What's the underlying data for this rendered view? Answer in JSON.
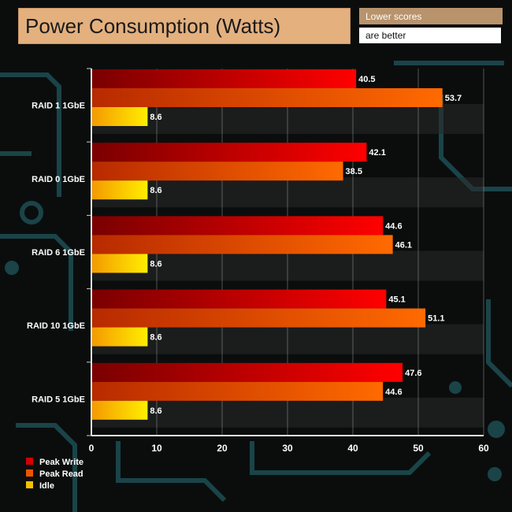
{
  "header": {
    "title": "Power Consumption (Watts)",
    "note_line1": "Lower scores",
    "note_line2": "are better"
  },
  "colors": {
    "peak_write": "#d40000",
    "peak_read": "#ee5500",
    "idle": "#f5c000",
    "grid": "#d8d8d8",
    "text": "#ffffff"
  },
  "chart_data": {
    "type": "bar",
    "orientation": "horizontal",
    "title": "Power Consumption (Watts)",
    "xlabel": "",
    "ylabel": "",
    "xlim": [
      0,
      60
    ],
    "xticks": [
      0,
      10,
      20,
      30,
      40,
      50,
      60
    ],
    "grid": true,
    "legend_position": "bottom-left",
    "categories": [
      "RAID 1 1GbE",
      "RAID 0 1GbE",
      "RAID 6 1GbE",
      "RAID 10 1GbE",
      "RAID 5 1GbE"
    ],
    "series": [
      {
        "name": "Peak Write",
        "values": [
          40.5,
          42.1,
          44.6,
          45.1,
          47.6
        ]
      },
      {
        "name": "Peak Read",
        "values": [
          53.7,
          38.5,
          46.1,
          51.1,
          44.6
        ]
      },
      {
        "name": "Idle",
        "values": [
          8.6,
          8.6,
          8.6,
          8.6,
          8.6
        ]
      }
    ]
  }
}
